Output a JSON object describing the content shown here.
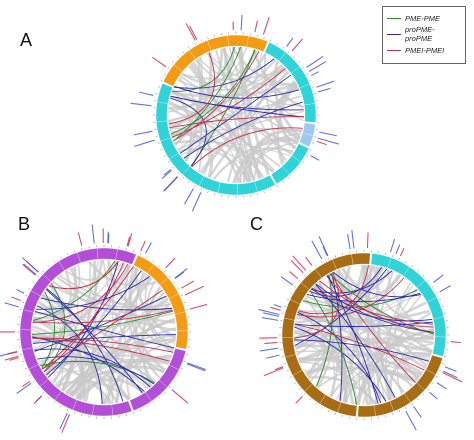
{
  "panels": [
    {
      "label": "A",
      "segments": [
        {
          "color": "#2fd3d8",
          "frac": 0.4
        },
        {
          "color": "#f29b14",
          "frac": 0.25
        },
        {
          "color": "#2fd3d8",
          "frac": 0.2
        },
        {
          "color": "#9ec9ee",
          "frac": 0.05
        },
        {
          "color": "#2fd3d8",
          "frac": 0.1
        }
      ]
    },
    {
      "label": "B",
      "segments": [
        {
          "color": "#b24fd6",
          "frac": 0.62
        },
        {
          "color": "#f29b14",
          "frac": 0.22
        },
        {
          "color": "#b24fd6",
          "frac": 0.16
        }
      ]
    },
    {
      "label": "C",
      "segments": [
        {
          "color": "#a86d14",
          "frac": 0.5
        },
        {
          "color": "#2fd3d8",
          "frac": 0.28
        },
        {
          "color": "#a86d14",
          "frac": 0.22
        }
      ]
    }
  ],
  "legend": [
    {
      "label": "PME-PME",
      "color": "#2e8b2e"
    },
    {
      "label": "proPME-proPME",
      "color": "#2a2aa8"
    },
    {
      "label": "PMEI-PMEI",
      "color": "#c0304a"
    }
  ],
  "colors": {
    "background_links": "#c8c8c8",
    "label_blue": "#4a5ad8",
    "label_red": "#d03050"
  }
}
